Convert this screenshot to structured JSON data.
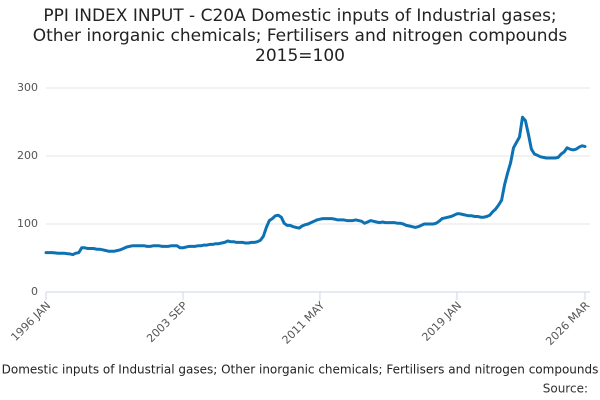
{
  "chart_data": {
    "type": "line",
    "title": "PPI INDEX INPUT - C20A Domestic inputs of Industrial gases; Other inorganic chemicals; Fertilisers and nitrogen compounds 2015=100",
    "source": "Source:",
    "categories": [
      "1996 JAN",
      null,
      null,
      null,
      null,
      null,
      null,
      null,
      null,
      null,
      null,
      null,
      null,
      null,
      null,
      null,
      null,
      null,
      null,
      null,
      null,
      null,
      null,
      null,
      null,
      null,
      null,
      null,
      null,
      null,
      null,
      null,
      null,
      null,
      null,
      null,
      null,
      null,
      null,
      null,
      null,
      null,
      null,
      null,
      null,
      null,
      "2003 SEP",
      null,
      null,
      null,
      null,
      null,
      null,
      null,
      null,
      null,
      null,
      null,
      null,
      null,
      null,
      null,
      null,
      null,
      null,
      null,
      null,
      null,
      null,
      null,
      null,
      null,
      null,
      null,
      null,
      null,
      null,
      null,
      null,
      null,
      null,
      null,
      null,
      null,
      null,
      null,
      null,
      null,
      null,
      null,
      null,
      null,
      "2011 MAY",
      null,
      null,
      null,
      null,
      null,
      null,
      null,
      null,
      null,
      null,
      null,
      null,
      null,
      null,
      null,
      null,
      null,
      null,
      null,
      null,
      null,
      null,
      null,
      null,
      null,
      null,
      null,
      null,
      null,
      null,
      null,
      null,
      null,
      null,
      null,
      null,
      null,
      null,
      null,
      null,
      null,
      null,
      null,
      null,
      null,
      "2019 JAN",
      null,
      null,
      null,
      null,
      null,
      null,
      null,
      null,
      null,
      null,
      null,
      null,
      null,
      null,
      null,
      null,
      null,
      null,
      null,
      null,
      null,
      null,
      null,
      null,
      null,
      null,
      null,
      null,
      null,
      null,
      null,
      null,
      null,
      null,
      null,
      null,
      null,
      null,
      null,
      null,
      null,
      null,
      "2026 MAR"
    ],
    "series": [
      {
        "name": "Domestic inputs of Industrial gases; Other inorganic chemicals; Fertilisers and nitrogen compounds",
        "color": "#0d72b4",
        "values": [
          58,
          58,
          58,
          57.5,
          57,
          57,
          57,
          56.5,
          56,
          55,
          57,
          58,
          65,
          65,
          64,
          64,
          64,
          63,
          63,
          62,
          61,
          60,
          60,
          60,
          61,
          62,
          64,
          66,
          67,
          68,
          68,
          68,
          68,
          68,
          67,
          67,
          68,
          68,
          68,
          67,
          67,
          67,
          68,
          68,
          68,
          65,
          65,
          66,
          67,
          67,
          67,
          68,
          68,
          69,
          69,
          70,
          70,
          71,
          71,
          72,
          73,
          75,
          74,
          74,
          73,
          73,
          73,
          72,
          72,
          73,
          73,
          74,
          76,
          82,
          95,
          105,
          108,
          112,
          113,
          110,
          101,
          98,
          98,
          96,
          95,
          94,
          97,
          99,
          100,
          102,
          104,
          106,
          107,
          108,
          108,
          108,
          108,
          107,
          106,
          106,
          106,
          105,
          105,
          105,
          106,
          105,
          104,
          101,
          103,
          105,
          104,
          103,
          102,
          103,
          102,
          102,
          102,
          102,
          101,
          101,
          100,
          98,
          97,
          96,
          95,
          96,
          98,
          100,
          100,
          100,
          100,
          101,
          104,
          108,
          109,
          110,
          111,
          113,
          115,
          115,
          114,
          113,
          112,
          112,
          111,
          111,
          110,
          110,
          111,
          113,
          118,
          122,
          128,
          135,
          158,
          175,
          190,
          212,
          220,
          228,
          257,
          252,
          232,
          210,
          203,
          201,
          199,
          198,
          197,
          197,
          197,
          197,
          198,
          203,
          206,
          212,
          210,
          209,
          210,
          213,
          215,
          214
        ]
      }
    ],
    "ylim": [
      0,
      300
    ],
    "yticks": [
      0,
      100,
      200,
      300
    ],
    "grid": true
  }
}
